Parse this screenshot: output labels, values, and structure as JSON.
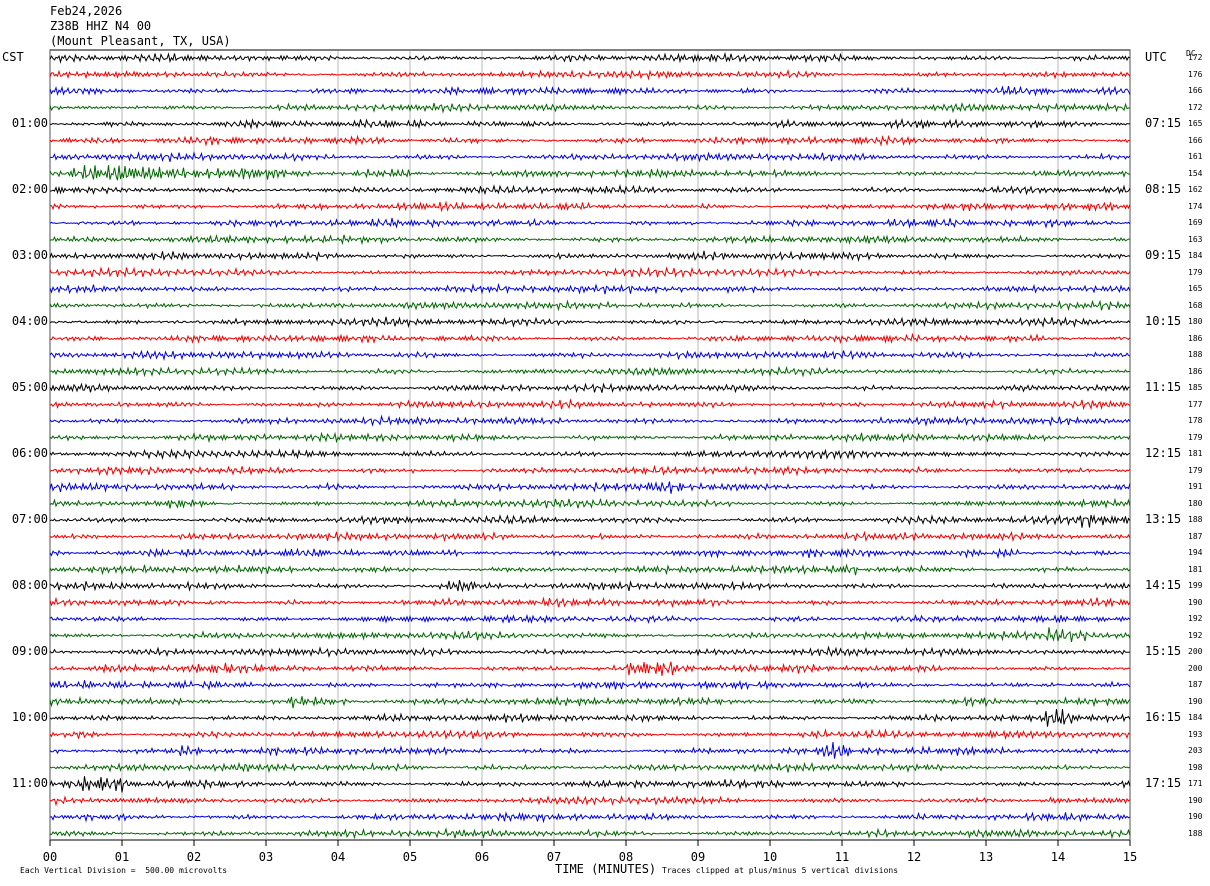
{
  "header": {
    "date": "Feb24,2026",
    "station": "Z38B HHZ N4 00",
    "location": "(Mount Pleasant, TX, USA)"
  },
  "left_tz": "CST",
  "right_tz": "UTC",
  "dc_header": "DC",
  "footer": {
    "scale": "Each Vertical Division =  500.00 microvolts",
    "xlabel": "TIME (MINUTES)",
    "clip": "Traces clipped at plus/minus 5 vertical divisions"
  },
  "chart_data": {
    "type": "line",
    "title": "",
    "xlabel": "TIME (MINUTES)",
    "xlim": [
      0,
      15
    ],
    "x_ticks": [
      "00",
      "01",
      "02",
      "03",
      "04",
      "05",
      "06",
      "07",
      "08",
      "09",
      "10",
      "11",
      "12",
      "13",
      "14",
      "15"
    ],
    "rows_per_hour": 4,
    "minutes_per_row": 15,
    "trace_colors": [
      "#000000",
      "#ee0000",
      "#0000dd",
      "#006600"
    ],
    "cst_labels": [
      {
        "row": 4,
        "label": "01:00"
      },
      {
        "row": 8,
        "label": "02:00"
      },
      {
        "row": 12,
        "label": "03:00"
      },
      {
        "row": 16,
        "label": "04:00"
      },
      {
        "row": 20,
        "label": "05:00"
      },
      {
        "row": 24,
        "label": "06:00"
      },
      {
        "row": 28,
        "label": "07:00"
      },
      {
        "row": 32,
        "label": "08:00"
      },
      {
        "row": 36,
        "label": "09:00"
      },
      {
        "row": 40,
        "label": "10:00"
      },
      {
        "row": 44,
        "label": "11:00"
      }
    ],
    "utc_labels": [
      {
        "row": 4,
        "label": "07:15"
      },
      {
        "row": 8,
        "label": "08:15"
      },
      {
        "row": 12,
        "label": "09:15"
      },
      {
        "row": 16,
        "label": "10:15"
      },
      {
        "row": 20,
        "label": "11:15"
      },
      {
        "row": 24,
        "label": "12:15"
      },
      {
        "row": 28,
        "label": "13:15"
      },
      {
        "row": 32,
        "label": "14:15"
      },
      {
        "row": 36,
        "label": "15:15"
      },
      {
        "row": 40,
        "label": "16:15"
      },
      {
        "row": 44,
        "label": "17:15"
      }
    ],
    "dc_values": [
      "172",
      "176",
      "166",
      "172",
      "165",
      "166",
      "161",
      "154",
      "162",
      "174",
      "169",
      "163",
      "184",
      "179",
      "165",
      "168",
      "180",
      "186",
      "188",
      "186",
      "185",
      "177",
      "178",
      "179",
      "181",
      "179",
      "191",
      "180",
      "188",
      "187",
      "194",
      "181",
      "199",
      "190",
      "192",
      "192",
      "200",
      "200",
      "187",
      "190",
      "184",
      "193",
      "203",
      "198",
      "171",
      "190",
      "190",
      "188"
    ],
    "bursts": [
      {
        "row": 7,
        "start_min": 0.3,
        "end_min": 5.0,
        "amp": 1.8
      },
      {
        "row": 25,
        "start_min": 13.2,
        "end_min": 13.5,
        "amp": 1.6
      },
      {
        "row": 26,
        "start_min": 3.8,
        "end_min": 4.0,
        "amp": 1.4
      },
      {
        "row": 26,
        "start_min": 8.3,
        "end_min": 8.8,
        "amp": 1.7
      },
      {
        "row": 27,
        "start_min": 1.6,
        "end_min": 2.3,
        "amp": 2.0
      },
      {
        "row": 28,
        "start_min": 14.3,
        "end_min": 15.0,
        "amp": 1.8
      },
      {
        "row": 30,
        "start_min": 13.1,
        "end_min": 13.5,
        "amp": 1.6
      },
      {
        "row": 31,
        "start_min": 10.8,
        "end_min": 11.2,
        "amp": 1.6
      },
      {
        "row": 32,
        "start_min": 5.4,
        "end_min": 5.9,
        "amp": 2.0
      },
      {
        "row": 33,
        "start_min": 2.2,
        "end_min": 2.7,
        "amp": 1.4
      },
      {
        "row": 35,
        "start_min": 13.8,
        "end_min": 14.4,
        "amp": 2.0
      },
      {
        "row": 37,
        "start_min": 1.9,
        "end_min": 2.5,
        "amp": 1.4
      },
      {
        "row": 37,
        "start_min": 8.0,
        "end_min": 8.7,
        "amp": 2.2
      },
      {
        "row": 38,
        "start_min": 4.9,
        "end_min": 5.4,
        "amp": 1.6
      },
      {
        "row": 39,
        "start_min": 3.3,
        "end_min": 4.2,
        "amp": 2.3
      },
      {
        "row": 39,
        "start_min": 11.1,
        "end_min": 11.5,
        "amp": 1.5
      },
      {
        "row": 39,
        "start_min": 12.7,
        "end_min": 13.1,
        "amp": 1.7
      },
      {
        "row": 40,
        "start_min": 13.8,
        "end_min": 14.2,
        "amp": 1.7
      },
      {
        "row": 41,
        "start_min": 0.3,
        "end_min": 0.7,
        "amp": 1.5
      },
      {
        "row": 41,
        "start_min": 10.4,
        "end_min": 10.8,
        "amp": 2.0
      },
      {
        "row": 42,
        "start_min": 1.8,
        "end_min": 2.1,
        "amp": 1.4
      },
      {
        "row": 42,
        "start_min": 10.7,
        "end_min": 11.1,
        "amp": 1.8
      },
      {
        "row": 43,
        "start_min": 5.9,
        "end_min": 6.2,
        "amp": 1.5
      },
      {
        "row": 44,
        "start_min": 0.4,
        "end_min": 1.1,
        "amp": 2.0
      },
      {
        "row": 45,
        "start_min": 13.8,
        "end_min": 14.0,
        "amp": 1.5
      }
    ]
  }
}
